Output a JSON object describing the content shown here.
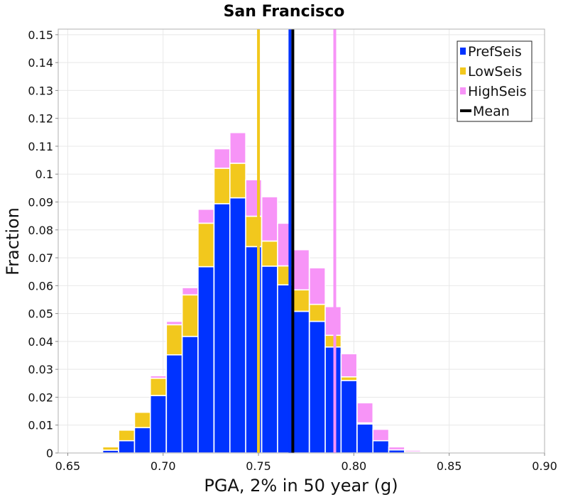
{
  "chart_data": {
    "type": "bar",
    "title": "San Francisco",
    "xlabel": "PGA, 2% in 50 year (g)",
    "ylabel": "Fraction",
    "xlim": [
      0.645,
      0.9
    ],
    "ylim": [
      0,
      0.152
    ],
    "bin_width": 0.00833,
    "x_ticks": [
      {
        "value": 0.65,
        "label": "0.65"
      },
      {
        "value": 0.7,
        "label": "0.70"
      },
      {
        "value": 0.75,
        "label": "0.75"
      },
      {
        "value": 0.8,
        "label": "0.80"
      },
      {
        "value": 0.85,
        "label": "0.85"
      },
      {
        "value": 0.9,
        "label": "0.90"
      }
    ],
    "y_ticks": [
      {
        "value": 0,
        "label": "0"
      },
      {
        "value": 0.01,
        "label": "0.01"
      },
      {
        "value": 0.02,
        "label": "0.02"
      },
      {
        "value": 0.03,
        "label": "0.03"
      },
      {
        "value": 0.04,
        "label": "0.04"
      },
      {
        "value": 0.05,
        "label": "0.05"
      },
      {
        "value": 0.06,
        "label": "0.06"
      },
      {
        "value": 0.07,
        "label": "0.07"
      },
      {
        "value": 0.08,
        "label": "0.08"
      },
      {
        "value": 0.09,
        "label": "0.09"
      },
      {
        "value": 0.1,
        "label": "0.1"
      },
      {
        "value": 0.11,
        "label": "0.11"
      },
      {
        "value": 0.12,
        "label": "0.12"
      },
      {
        "value": 0.13,
        "label": "0.13"
      },
      {
        "value": 0.14,
        "label": "0.14"
      },
      {
        "value": 0.15,
        "label": "0.15"
      }
    ],
    "bin_starts": [
      0.6517,
      0.66,
      0.6683,
      0.6767,
      0.685,
      0.6933,
      0.7017,
      0.71,
      0.7183,
      0.7267,
      0.735,
      0.7433,
      0.7517,
      0.76,
      0.7683,
      0.7767,
      0.785,
      0.7933,
      0.8017,
      0.81,
      0.8183,
      0.8267,
      0.835,
      0.8433,
      0.8517,
      0.86,
      0.8683,
      0.8767,
      0.885
    ],
    "series": [
      {
        "name": "PrefSeis",
        "color": "#0033ff",
        "values": [
          0.0002,
          0.0004,
          0.001,
          0.0044,
          0.0091,
          0.0206,
          0.0352,
          0.0418,
          0.0668,
          0.0894,
          0.0915,
          0.074,
          0.067,
          0.0603,
          0.0508,
          0.0472,
          0.038,
          0.026,
          0.0104,
          0.0044,
          0.0011,
          0.0004,
          0.0002,
          0.0001,
          0,
          0,
          0,
          0,
          0
        ]
      },
      {
        "name": "LowSeis",
        "color": "#f2c81d",
        "values": [
          0,
          0.0003,
          0.0012,
          0.0038,
          0.0055,
          0.0062,
          0.0108,
          0.0149,
          0.0156,
          0.0127,
          0.0124,
          0.0109,
          0.009,
          0.0068,
          0.0077,
          0.0061,
          0.0042,
          0.0013,
          0.0004,
          0,
          0,
          0,
          0,
          0,
          0,
          0,
          0,
          0,
          0
        ]
      },
      {
        "name": "HighSeis",
        "color": "#f794f7",
        "values": [
          0,
          0,
          0,
          0,
          0,
          0.0009,
          0.0012,
          0.0026,
          0.005,
          0.007,
          0.011,
          0.0131,
          0.0159,
          0.0153,
          0.0144,
          0.0131,
          0.0103,
          0.0083,
          0.0072,
          0.0041,
          0.0011,
          0.0006,
          0.0002,
          0.0001,
          0,
          0,
          0,
          0,
          0
        ]
      }
    ],
    "vertical_lines": [
      {
        "name": "LowSeis",
        "x": 0.75,
        "color": "#f2c81d"
      },
      {
        "name": "HighSeis",
        "x": 0.79,
        "color": "#f794f7"
      },
      {
        "name": "PrefSeis",
        "x": 0.7665,
        "color": "#0033ff"
      },
      {
        "name": "Mean",
        "x": 0.768,
        "color": "#000000"
      }
    ],
    "legend": {
      "placement": "top-right",
      "entries": [
        {
          "label": "PrefSeis",
          "color": "#0033ff",
          "symbol": "square"
        },
        {
          "label": "LowSeis",
          "color": "#f2c81d",
          "symbol": "square"
        },
        {
          "label": "HighSeis",
          "color": "#f794f7",
          "symbol": "square"
        },
        {
          "label": "Mean",
          "color": "#000000",
          "symbol": "line"
        }
      ]
    },
    "grid": true
  }
}
